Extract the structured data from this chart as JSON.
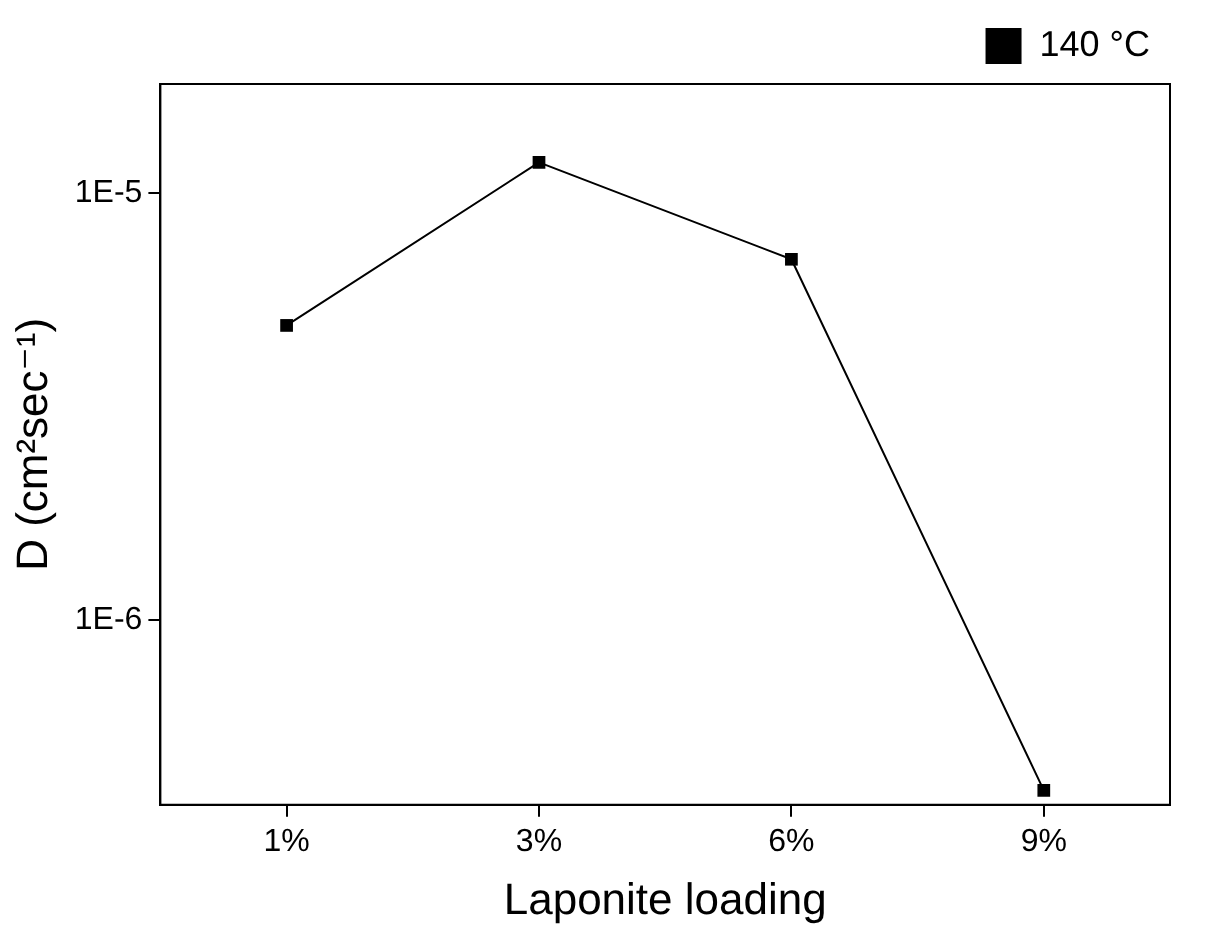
{
  "chart_data": {
    "type": "line",
    "xlabel": "Laponite loading",
    "ylabel": "D (cm²sec⁻¹)",
    "categories": [
      "1%",
      "3%",
      "6%",
      "9%"
    ],
    "series": [
      {
        "name": "140 °C",
        "color": "#000000",
        "values": [
          4.9e-06,
          1.18e-05,
          7e-06,
          4e-07
        ]
      }
    ],
    "log": "y",
    "ylim": [
      3.7e-07,
      1.8e-05
    ],
    "yticks": [
      {
        "value": 1e-06,
        "label": "1E-6"
      },
      {
        "value": 1e-05,
        "label": "1E-5"
      }
    ],
    "grid": false,
    "legend": "top right",
    "marker": "square",
    "line_style": "solid"
  }
}
